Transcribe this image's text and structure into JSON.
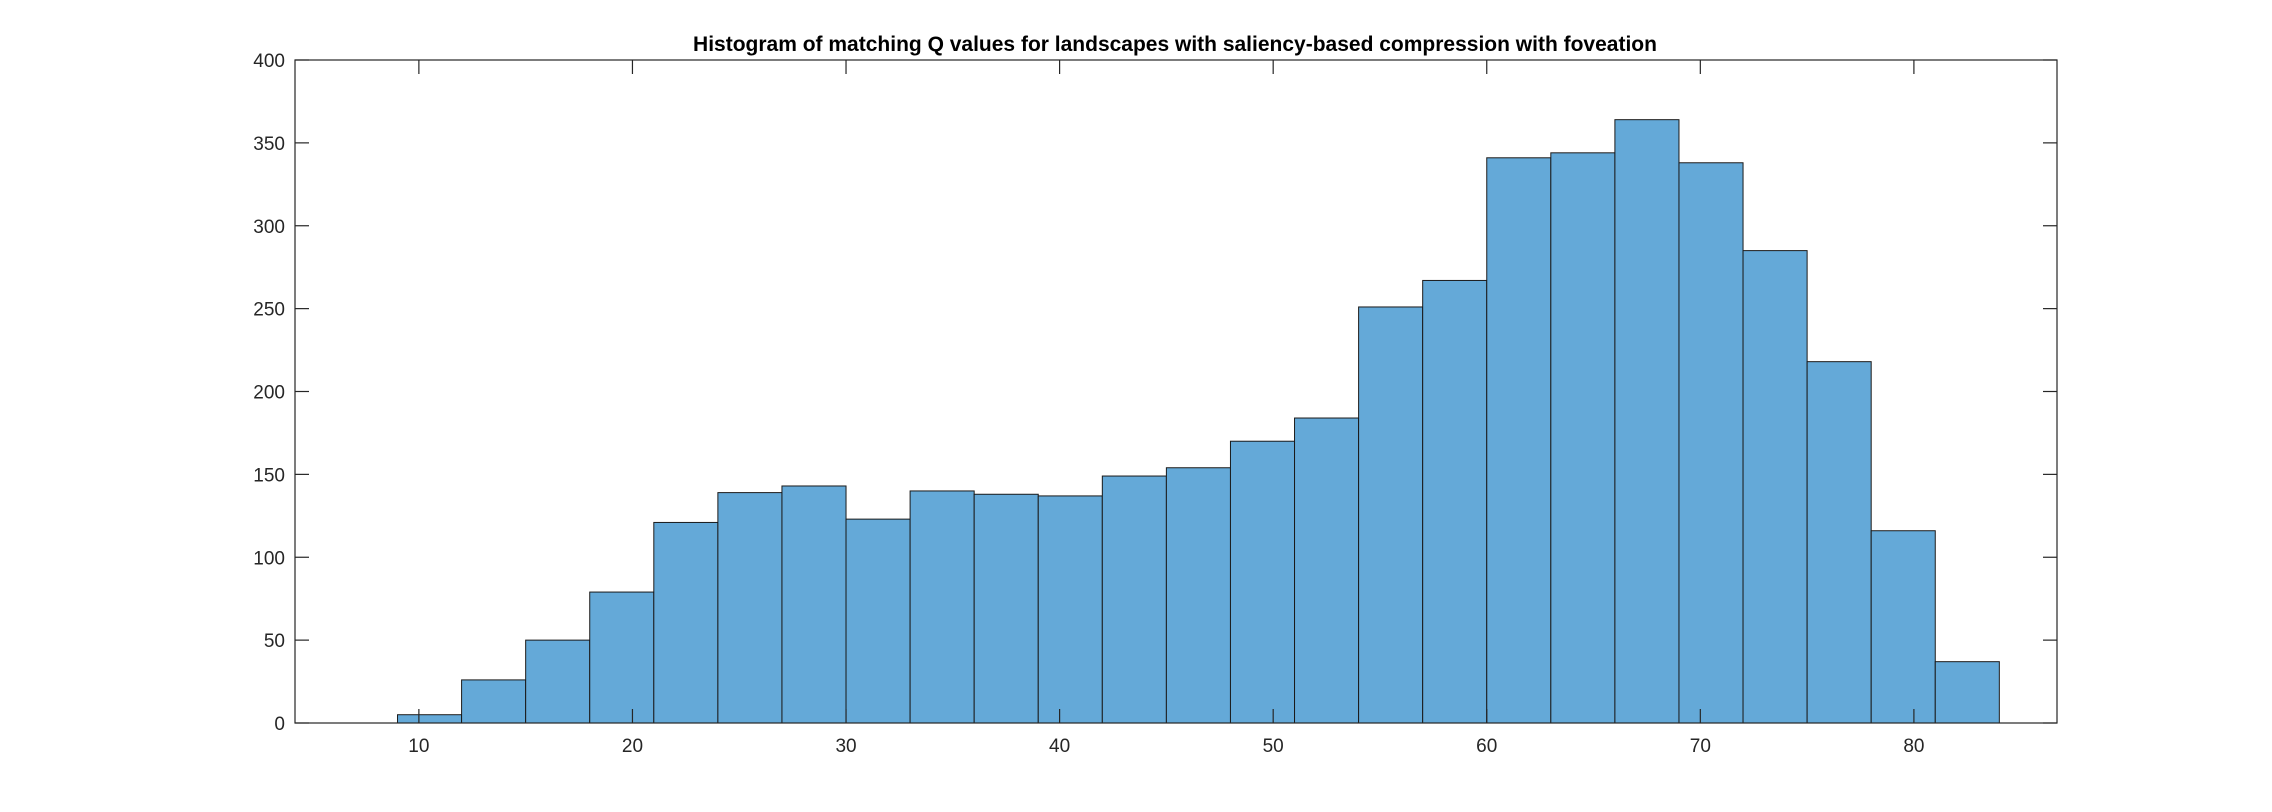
{
  "chart_data": {
    "type": "bar",
    "title": "Histogram of matching Q values for landscapes with saliency-based compression with foveation",
    "xlabel": "",
    "ylabel": "",
    "bin_width": 3,
    "bins": [
      {
        "start": 9,
        "end": 12,
        "count": 5
      },
      {
        "start": 12,
        "end": 15,
        "count": 26
      },
      {
        "start": 15,
        "end": 18,
        "count": 50
      },
      {
        "start": 18,
        "end": 21,
        "count": 79
      },
      {
        "start": 21,
        "end": 24,
        "count": 121
      },
      {
        "start": 24,
        "end": 27,
        "count": 139
      },
      {
        "start": 27,
        "end": 30,
        "count": 143
      },
      {
        "start": 30,
        "end": 33,
        "count": 123
      },
      {
        "start": 33,
        "end": 36,
        "count": 140
      },
      {
        "start": 36,
        "end": 39,
        "count": 138
      },
      {
        "start": 39,
        "end": 42,
        "count": 137
      },
      {
        "start": 42,
        "end": 45,
        "count": 149
      },
      {
        "start": 45,
        "end": 48,
        "count": 154
      },
      {
        "start": 48,
        "end": 51,
        "count": 170
      },
      {
        "start": 51,
        "end": 54,
        "count": 184
      },
      {
        "start": 54,
        "end": 57,
        "count": 251
      },
      {
        "start": 57,
        "end": 60,
        "count": 267
      },
      {
        "start": 60,
        "end": 63,
        "count": 341
      },
      {
        "start": 63,
        "end": 66,
        "count": 344
      },
      {
        "start": 66,
        "end": 69,
        "count": 364
      },
      {
        "start": 69,
        "end": 72,
        "count": 338
      },
      {
        "start": 72,
        "end": 75,
        "count": 285
      },
      {
        "start": 75,
        "end": 78,
        "count": 218
      },
      {
        "start": 78,
        "end": 81,
        "count": 116
      },
      {
        "start": 81,
        "end": 84,
        "count": 37
      }
    ],
    "xlim": [
      4.2,
      86.7
    ],
    "ylim": [
      0,
      400
    ],
    "xticks": [
      10,
      20,
      30,
      40,
      50,
      60,
      70,
      80
    ],
    "yticks": [
      0,
      50,
      100,
      150,
      200,
      250,
      300,
      350,
      400
    ],
    "grid": false,
    "legend": "none",
    "colors": {
      "bar_fill": "#64A9D8",
      "bar_edge": "#1A1A1A",
      "axis": "#262626",
      "background": "#FFFFFF"
    }
  }
}
